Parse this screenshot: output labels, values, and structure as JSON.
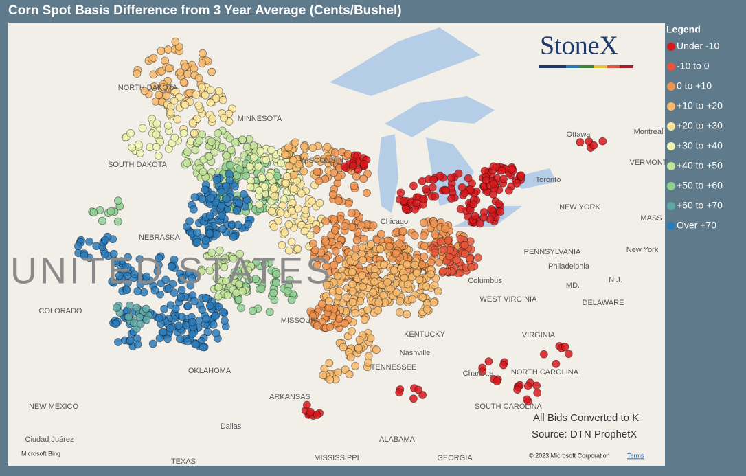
{
  "header": {
    "title": "Corn Spot Basis Difference from 3 Year Average (Cents/Bushel)"
  },
  "legend": {
    "title": "Legend",
    "items": [
      {
        "label": "Under -10",
        "color": "#d7191c"
      },
      {
        "label": "-10 to 0",
        "color": "#e8553a"
      },
      {
        "label": "0 to +10",
        "color": "#f0934f"
      },
      {
        "label": "+10 to +20",
        "color": "#f7b96b"
      },
      {
        "label": "+20 to +30",
        "color": "#fbe59a"
      },
      {
        "label": "+30 to +40",
        "color": "#eef5b0"
      },
      {
        "label": "+40 to +50",
        "color": "#c4e49a"
      },
      {
        "label": "+50 to +60",
        "color": "#8fcf93"
      },
      {
        "label": "+60 to +70",
        "color": "#5ea8a8"
      },
      {
        "label": "Over +70",
        "color": "#2b7bba"
      }
    ]
  },
  "map": {
    "labels": [
      "NORTH DAKOTA",
      "MINNESOTA",
      "SOUTH DAKOTA",
      "WISCONSIN",
      "NEBRASKA",
      "UNITED STATES",
      "COLORADO",
      "MISSOURI",
      "KENTUCKY",
      "TENNESSEE",
      "OKLAHOMA",
      "ARKANSAS",
      "NEW MEXICO",
      "TEXAS",
      "MISSISSIPPI",
      "ALABAMA",
      "GEORGIA",
      "SOUTH CAROLINA",
      "NORTH CAROLINA",
      "VIRGINIA",
      "WEST VIRGINIA",
      "PENNSYLVANIA",
      "NEW YORK",
      "DELAWARE",
      "MD.",
      "N.J.",
      "MASS",
      "VERMONT",
      "Chicago",
      "Columbus",
      "Nashville",
      "Charlotte",
      "Dallas",
      "Ciudad Juárez",
      "Philadelphia",
      "New York",
      "Ottawa",
      "Montreal",
      "Toronto"
    ]
  },
  "annotations": {
    "note": "All Bids Converted to K",
    "source": "Source: DTN ProphetX",
    "logo": "StoneX",
    "copyright": "© 2023 Microsoft Corporation",
    "terms": "Terms",
    "bing": "Microsoft Bing"
  }
}
